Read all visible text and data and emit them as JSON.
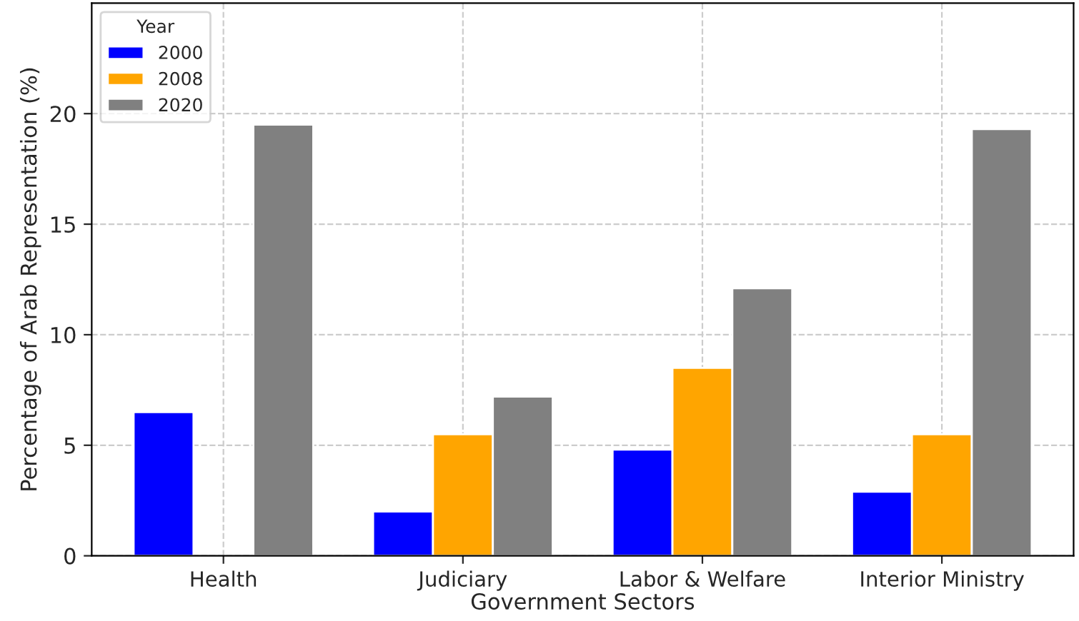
{
  "chart_data": {
    "type": "bar",
    "xlabel": "Government Sectors",
    "ylabel": "Percentage of Arab Representation (%)",
    "legend_title": "Year",
    "categories": [
      "Health",
      "Judiciary",
      "Labor & Welfare",
      "Interior Ministry"
    ],
    "series": [
      {
        "name": "2000",
        "color": "#0000ff",
        "values": [
          6.5,
          2.0,
          4.8,
          2.9
        ]
      },
      {
        "name": "2008",
        "color": "#ffa500",
        "values": [
          null,
          5.5,
          8.5,
          5.5
        ]
      },
      {
        "name": "2020",
        "color": "#808080",
        "values": [
          19.5,
          7.2,
          12.1,
          19.3
        ]
      }
    ],
    "ylim": [
      0,
      25
    ],
    "yticks": [
      0,
      5,
      10,
      15,
      20
    ],
    "grid": true,
    "legend": "top left"
  }
}
